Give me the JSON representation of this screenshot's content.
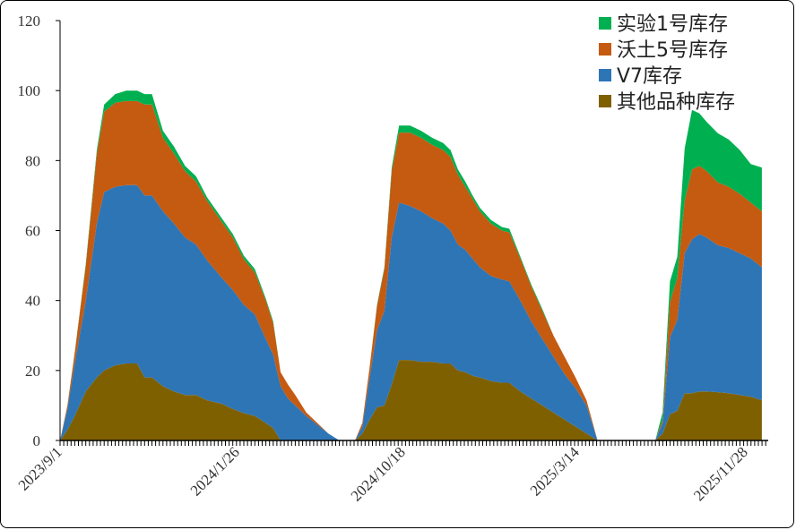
{
  "chart_data": {
    "type": "area",
    "stacked": true,
    "y_ticks": [
      "0",
      "20",
      "40",
      "60",
      "80",
      "100",
      "120"
    ],
    "ylim": [
      0,
      120
    ],
    "x_tick_labels": [
      "2023/9/1",
      "2024/1/26",
      "2024/10/18",
      "2025/3/14",
      "2025/11/28"
    ],
    "legend_position": "top-right",
    "grid": false,
    "series": [
      {
        "name": "其他品种库存",
        "color": "#7f6000",
        "seasons": [
          [
            [
              0,
              0
            ],
            [
              2,
              3
            ],
            [
              4,
              7
            ],
            [
              7,
              14
            ],
            [
              10,
              18
            ],
            [
              12,
              20
            ],
            [
              15,
              21.5
            ],
            [
              18,
              22
            ],
            [
              21,
              22
            ],
            [
              23,
              18
            ],
            [
              25,
              18
            ],
            [
              28,
              15.5
            ],
            [
              31,
              14
            ],
            [
              34,
              13
            ],
            [
              37,
              13
            ],
            [
              40,
              11.5
            ],
            [
              44,
              10.5
            ],
            [
              47,
              9
            ],
            [
              50,
              7.8
            ],
            [
              53,
              7
            ],
            [
              56,
              5
            ],
            [
              58,
              3.5
            ],
            [
              60,
              0
            ],
            [
              62,
              0
            ],
            [
              64,
              0
            ],
            [
              67,
              0
            ],
            [
              70,
              0
            ],
            [
              73,
              0
            ],
            [
              76,
              0
            ]
          ],
          [
            [
              0,
              0
            ],
            [
              2,
              2
            ],
            [
              4,
              6
            ],
            [
              6,
              9.5
            ],
            [
              8,
              10
            ],
            [
              10,
              16
            ],
            [
              12,
              23
            ],
            [
              15,
              23
            ],
            [
              18,
              22.5
            ],
            [
              21,
              22.5
            ],
            [
              24,
              22
            ],
            [
              26,
              22
            ],
            [
              28,
              20
            ],
            [
              30,
              19.5
            ],
            [
              32,
              18.5
            ],
            [
              34,
              18
            ],
            [
              37,
              17
            ],
            [
              40,
              16.5
            ],
            [
              42,
              16.5
            ],
            [
              45,
              14
            ],
            [
              48,
              12
            ],
            [
              51,
              10
            ],
            [
              54,
              8
            ],
            [
              57,
              6
            ],
            [
              60,
              4
            ],
            [
              63,
              2
            ],
            [
              66,
              0
            ]
          ],
          [
            [
              0,
              0
            ],
            [
              2,
              2
            ],
            [
              4,
              7.5
            ],
            [
              6,
              8.5
            ],
            [
              8,
              13.5
            ],
            [
              10,
              13.5
            ],
            [
              12,
              14
            ],
            [
              14,
              14
            ],
            [
              17,
              13.8
            ],
            [
              20,
              13.5
            ],
            [
              23,
              13
            ],
            [
              26,
              12.5
            ],
            [
              29,
              11.5
            ]
          ]
        ]
      },
      {
        "name": "V7库存",
        "color": "#2e75b6",
        "seasons": [
          [
            [
              0,
              0
            ],
            [
              2,
              6
            ],
            [
              4,
              15
            ],
            [
              7,
              26
            ],
            [
              10,
              44
            ],
            [
              12,
              51
            ],
            [
              15,
              51
            ],
            [
              18,
              51
            ],
            [
              21,
              51
            ],
            [
              23,
              52
            ],
            [
              25,
              52
            ],
            [
              28,
              50
            ],
            [
              31,
              48
            ],
            [
              34,
              45
            ],
            [
              37,
              43
            ],
            [
              40,
              40
            ],
            [
              44,
              36
            ],
            [
              47,
              34
            ],
            [
              50,
              31
            ],
            [
              53,
              29
            ],
            [
              56,
              24
            ],
            [
              58,
              21
            ],
            [
              60,
              15.5
            ],
            [
              62,
              12
            ],
            [
              64,
              10
            ],
            [
              67,
              7
            ],
            [
              70,
              4.5
            ],
            [
              73,
              2
            ],
            [
              76,
              0
            ]
          ],
          [
            [
              0,
              0
            ],
            [
              2,
              2
            ],
            [
              4,
              12
            ],
            [
              6,
              22
            ],
            [
              8,
              27
            ],
            [
              10,
              42
            ],
            [
              12,
              45
            ],
            [
              15,
              44
            ],
            [
              18,
              43
            ],
            [
              21,
              41
            ],
            [
              24,
              40
            ],
            [
              26,
              38
            ],
            [
              28,
              36
            ],
            [
              30,
              35
            ],
            [
              32,
              33.5
            ],
            [
              34,
              31.5
            ],
            [
              37,
              30
            ],
            [
              40,
              29.5
            ],
            [
              42,
              29
            ],
            [
              45,
              26
            ],
            [
              48,
              22
            ],
            [
              51,
              19
            ],
            [
              54,
              16
            ],
            [
              57,
              13
            ],
            [
              60,
              11
            ],
            [
              63,
              8
            ],
            [
              66,
              0
            ]
          ],
          [
            [
              0,
              0
            ],
            [
              2,
              3
            ],
            [
              4,
              22
            ],
            [
              6,
              26
            ],
            [
              8,
              40
            ],
            [
              10,
              44
            ],
            [
              12,
              45
            ],
            [
              14,
              44
            ],
            [
              17,
              42
            ],
            [
              20,
              41.5
            ],
            [
              23,
              40.5
            ],
            [
              26,
              39.5
            ],
            [
              29,
              38
            ]
          ]
        ]
      },
      {
        "name": "沃土5号库存",
        "color": "#c55a11",
        "seasons": [
          [
            [
              0,
              0
            ],
            [
              2,
              1
            ],
            [
              4,
              3
            ],
            [
              7,
              10
            ],
            [
              10,
              20
            ],
            [
              12,
              23
            ],
            [
              15,
              24
            ],
            [
              18,
              24
            ],
            [
              21,
              24
            ],
            [
              23,
              26
            ],
            [
              25,
              26
            ],
            [
              28,
              21
            ],
            [
              31,
              20
            ],
            [
              34,
              19
            ],
            [
              37,
              18
            ],
            [
              40,
              17
            ],
            [
              44,
              16
            ],
            [
              47,
              15
            ],
            [
              50,
              13
            ],
            [
              53,
              12
            ],
            [
              56,
              11
            ],
            [
              58,
              9
            ],
            [
              60,
              4
            ],
            [
              62,
              4
            ],
            [
              64,
              3
            ],
            [
              67,
              1
            ],
            [
              70,
              0.5
            ],
            [
              73,
              0
            ],
            [
              76,
              0
            ]
          ],
          [
            [
              0,
              0
            ],
            [
              2,
              1
            ],
            [
              4,
              3
            ],
            [
              6,
              7
            ],
            [
              8,
              12
            ],
            [
              10,
              19
            ],
            [
              12,
              20
            ],
            [
              15,
              21
            ],
            [
              18,
              21
            ],
            [
              21,
              21
            ],
            [
              24,
              21
            ],
            [
              26,
              21
            ],
            [
              28,
              20
            ],
            [
              30,
              18
            ],
            [
              32,
              17
            ],
            [
              34,
              16
            ],
            [
              37,
              15
            ],
            [
              40,
              14
            ],
            [
              42,
              14
            ],
            [
              45,
              12
            ],
            [
              48,
              10
            ],
            [
              51,
              8
            ],
            [
              54,
              6
            ],
            [
              57,
              5
            ],
            [
              60,
              3
            ],
            [
              63,
              1.5
            ],
            [
              66,
              0
            ]
          ],
          [
            [
              0,
              0
            ],
            [
              2,
              1
            ],
            [
              4,
              10
            ],
            [
              6,
              12
            ],
            [
              8,
              15
            ],
            [
              10,
              20
            ],
            [
              12,
              19.5
            ],
            [
              14,
              19
            ],
            [
              17,
              18
            ],
            [
              20,
              17.5
            ],
            [
              23,
              17
            ],
            [
              26,
              16
            ],
            [
              29,
              16
            ]
          ]
        ]
      },
      {
        "name": "实验1号库存",
        "color": "#00b050",
        "seasons": [
          [
            [
              0,
              0
            ],
            [
              2,
              0
            ],
            [
              4,
              0.3
            ],
            [
              7,
              0.5
            ],
            [
              10,
              1
            ],
            [
              12,
              2
            ],
            [
              15,
              2.5
            ],
            [
              18,
              3
            ],
            [
              21,
              3
            ],
            [
              23,
              3
            ],
            [
              25,
              3
            ],
            [
              28,
              2
            ],
            [
              31,
              2
            ],
            [
              34,
              1.5
            ],
            [
              37,
              1.5
            ],
            [
              40,
              1
            ],
            [
              44,
              1
            ],
            [
              47,
              1
            ],
            [
              50,
              1
            ],
            [
              53,
              1
            ],
            [
              56,
              0.5
            ],
            [
              58,
              0.5
            ],
            [
              60,
              0
            ],
            [
              62,
              0
            ],
            [
              64,
              0
            ],
            [
              67,
              0
            ],
            [
              70,
              0
            ],
            [
              73,
              0
            ],
            [
              76,
              0
            ]
          ],
          [
            [
              0,
              0
            ],
            [
              2,
              0
            ],
            [
              4,
              0
            ],
            [
              6,
              0.3
            ],
            [
              8,
              0.5
            ],
            [
              10,
              1
            ],
            [
              12,
              2
            ],
            [
              15,
              2
            ],
            [
              18,
              2
            ],
            [
              21,
              2
            ],
            [
              24,
              2
            ],
            [
              26,
              2
            ],
            [
              28,
              1.5
            ],
            [
              30,
              1.5
            ],
            [
              32,
              1
            ],
            [
              34,
              1
            ],
            [
              37,
              1
            ],
            [
              40,
              1
            ],
            [
              42,
              1
            ],
            [
              45,
              0.5
            ],
            [
              48,
              0.5
            ],
            [
              51,
              0.5
            ],
            [
              54,
              0
            ],
            [
              57,
              0
            ],
            [
              60,
              0
            ],
            [
              63,
              0
            ],
            [
              66,
              0
            ]
          ],
          [
            [
              0,
              0
            ],
            [
              2,
              2
            ],
            [
              4,
              6
            ],
            [
              6,
              6
            ],
            [
              8,
              15
            ],
            [
              10,
              17
            ],
            [
              12,
              15
            ],
            [
              14,
              14
            ],
            [
              17,
              14
            ],
            [
              20,
              13.5
            ],
            [
              23,
              12.5
            ],
            [
              26,
              11
            ],
            [
              29,
              12.5
            ]
          ]
        ]
      }
    ]
  }
}
